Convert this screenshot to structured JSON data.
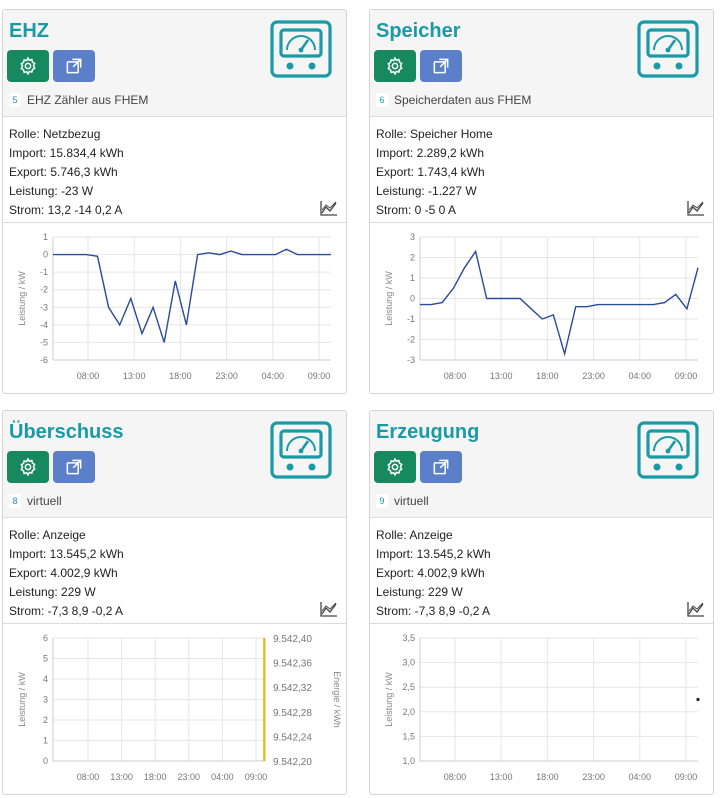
{
  "cards": [
    {
      "title": "EHZ",
      "id": "5",
      "subtitle": "EHZ Zähler aus FHEM",
      "info": [
        "Rolle: Netzbezug",
        "Import: 15.834,4 kWh",
        "Export: 5.746,3 kWh",
        "Leistung: -23 W",
        "Strom: 13,2 -14 0,2 A"
      ]
    },
    {
      "title": "Speicher",
      "id": "6",
      "subtitle": "Speicherdaten aus FHEM",
      "info": [
        "Rolle: Speicher Home",
        "Import: 2.289,2 kWh",
        "Export: 1.743,4 kWh",
        "Leistung: -1.227 W",
        "Strom: 0 -5 0 A"
      ]
    },
    {
      "title": "Überschuss",
      "id": "8",
      "subtitle": "virtuell",
      "info": [
        "Rolle: Anzeige",
        "Import: 13.545,2 kWh",
        "Export: 4.002,9 kWh",
        "Leistung: 229 W",
        "Strom: -7,3 8,9 -0,2 A"
      ]
    },
    {
      "title": "Erzeugung",
      "id": "9",
      "subtitle": "virtuell",
      "info": [
        "Rolle: Anzeige",
        "Import: 13.545,2 kWh",
        "Export: 4.002,9 kWh",
        "Leistung: 229 W",
        "Strom: -7,3 8,9 -0,2 A"
      ]
    }
  ],
  "colors": {
    "accent": "#1a9aa6",
    "gear_button": "#17895f",
    "ext_button": "#5b7fc8",
    "series": "#2a4a9a",
    "energy": "#f0b400"
  },
  "chart_data": [
    {
      "type": "line",
      "ylabel": "Leistung / kW",
      "ylim": [
        -6,
        1
      ],
      "yticks": [
        "1",
        "0",
        "-1",
        "-2",
        "-3",
        "-4",
        "-5",
        "-6"
      ],
      "xticks": [
        "08:00",
        "13:00",
        "18:00",
        "23:00",
        "04:00",
        "09:00"
      ],
      "series": [
        {
          "x": [
            0,
            1,
            2,
            3,
            4,
            5,
            6,
            7,
            8,
            9,
            10,
            11,
            12,
            13,
            14,
            15,
            16,
            17,
            18,
            19,
            20,
            21,
            22,
            23,
            24,
            25
          ],
          "y": [
            0,
            0,
            0,
            0,
            -0.1,
            -3,
            -4,
            -2.5,
            -4.5,
            -3,
            -5,
            -1.5,
            -4,
            0,
            0.1,
            0,
            0.2,
            0,
            0,
            0,
            0,
            0.3,
            0,
            0,
            0,
            0
          ]
        }
      ]
    },
    {
      "type": "line",
      "ylabel": "Leistung / kW",
      "ylim": [
        -3,
        3
      ],
      "yticks": [
        "3",
        "2",
        "1",
        "0",
        "-1",
        "-2",
        "-3"
      ],
      "xticks": [
        "08:00",
        "13:00",
        "18:00",
        "23:00",
        "04:00",
        "09:00"
      ],
      "series": [
        {
          "x": [
            0,
            1,
            2,
            3,
            4,
            5,
            6,
            7,
            8,
            9,
            10,
            11,
            12,
            13,
            14,
            15,
            16,
            17,
            18,
            19,
            20,
            21,
            22,
            23,
            24,
            25
          ],
          "y": [
            -0.3,
            -0.3,
            -0.2,
            0.5,
            1.5,
            2.3,
            0,
            0,
            0,
            0,
            -0.5,
            -1,
            -0.8,
            -2.7,
            -0.4,
            -0.4,
            -0.3,
            -0.3,
            -0.3,
            -0.3,
            -0.3,
            -0.3,
            -0.2,
            0.2,
            -0.5,
            1.5
          ]
        }
      ]
    },
    {
      "type": "line",
      "ylabel": "Leistung / kW",
      "y2label": "Energie / kWh",
      "ylim": [
        0,
        6
      ],
      "yticks": [
        "6",
        "5",
        "4",
        "3",
        "2",
        "1",
        "0"
      ],
      "y2ticks": [
        "9.542,40",
        "9.542,36",
        "9.542,32",
        "9.542,28",
        "9.542,24",
        "9.542,20"
      ],
      "xticks": [
        "08:00",
        "13:00",
        "18:00",
        "23:00",
        "04:00",
        "09:00"
      ],
      "series": [
        {
          "x": [
            24.9,
            24.9
          ],
          "y": [
            0,
            6
          ]
        }
      ]
    },
    {
      "type": "scatter",
      "ylabel": "Leistung / kW",
      "ylim": [
        1.0,
        3.5
      ],
      "yticks": [
        "3,5",
        "3,0",
        "2,5",
        "2,0",
        "1,5",
        "1,0"
      ],
      "xticks": [
        "08:00",
        "13:00",
        "18:00",
        "23:00",
        "04:00",
        "09:00"
      ],
      "series": [
        {
          "x": [
            25
          ],
          "y": [
            2.25
          ]
        }
      ]
    }
  ]
}
